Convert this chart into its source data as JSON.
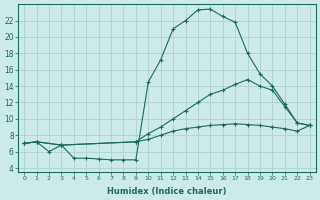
{
  "background_color": "#cceaea",
  "grid_color": "#aacccc",
  "line_color": "#1a6b5a",
  "xlabel": "Humidex (Indice chaleur)",
  "x_ticks": [
    0,
    1,
    2,
    3,
    4,
    5,
    6,
    7,
    8,
    9,
    10,
    11,
    12,
    13,
    14,
    15,
    16,
    17,
    18,
    19,
    20,
    21,
    22,
    23
  ],
  "ylim": [
    3.5,
    24
  ],
  "xlim": [
    -0.5,
    23.5
  ],
  "y_ticks": [
    4,
    6,
    8,
    10,
    12,
    14,
    16,
    18,
    20,
    22
  ],
  "curve1_x": [
    0,
    1,
    2,
    3,
    4,
    5,
    6,
    7,
    8,
    9,
    10,
    11,
    12,
    13,
    14,
    15,
    16,
    17,
    18,
    19,
    20,
    21,
    22,
    23
  ],
  "curve1_y": [
    7.0,
    7.2,
    6.0,
    6.8,
    5.2,
    5.2,
    5.1,
    5.0,
    5.0,
    5.0,
    14.5,
    17.2,
    21.0,
    22.0,
    23.3,
    23.4,
    22.5,
    21.8,
    18.0,
    15.5,
    14.0,
    11.8,
    9.5,
    9.2
  ],
  "curve2_x": [
    0,
    1,
    3,
    9,
    10,
    11,
    12,
    13,
    14,
    15,
    16,
    17,
    18,
    19,
    20,
    21,
    22,
    23
  ],
  "curve2_y": [
    7.0,
    7.2,
    6.8,
    7.2,
    8.2,
    9.0,
    10.0,
    11.0,
    12.0,
    13.0,
    13.5,
    14.2,
    14.8,
    14.0,
    13.5,
    11.5,
    9.5,
    9.2
  ],
  "curve3_x": [
    0,
    1,
    3,
    9,
    10,
    11,
    12,
    13,
    14,
    15,
    16,
    17,
    18,
    19,
    20,
    21,
    22,
    23
  ],
  "curve3_y": [
    7.0,
    7.2,
    6.8,
    7.2,
    7.5,
    8.0,
    8.5,
    8.8,
    9.0,
    9.2,
    9.3,
    9.4,
    9.3,
    9.2,
    9.0,
    8.8,
    8.5,
    9.2
  ]
}
